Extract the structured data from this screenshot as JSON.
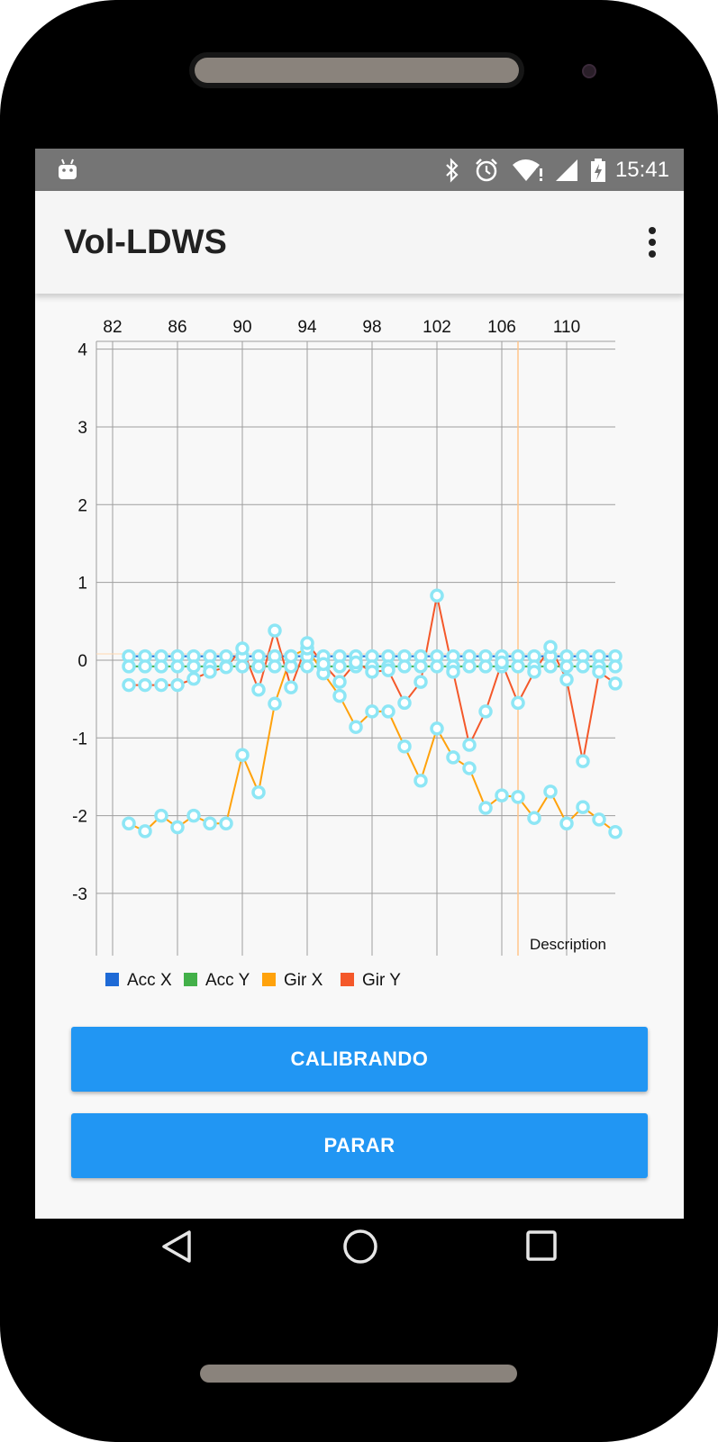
{
  "status_bar": {
    "time": "15:41"
  },
  "app_bar": {
    "title": "Vol-LDWS"
  },
  "chart_data": {
    "type": "line",
    "x_axis_ticks": [
      "82",
      "86",
      "90",
      "94",
      "98",
      "102",
      "106",
      "110"
    ],
    "y_axis_ticks": [
      "4",
      "3",
      "2",
      "1",
      "0",
      "-1",
      "-2",
      "-3"
    ],
    "xlim": [
      81,
      113
    ],
    "ylim": [
      -3.8,
      4.1
    ],
    "description": "Description",
    "legend_position": "bottom-left",
    "grid": true,
    "limit_line_x": 107,
    "x": [
      83,
      84,
      85,
      86,
      87,
      88,
      89,
      90,
      91,
      92,
      93,
      94,
      95,
      96,
      97,
      98,
      99,
      100,
      101,
      102,
      103,
      104,
      105,
      106,
      107,
      108,
      109,
      110,
      111,
      112,
      113
    ],
    "series": [
      {
        "name": "Acc X",
        "color": "#1e6ad6",
        "values": [
          0.05,
          0.05,
          0.05,
          0.05,
          0.05,
          0.05,
          0.05,
          0.05,
          0.05,
          0.05,
          0.05,
          0.05,
          0.05,
          0.05,
          0.05,
          0.05,
          0.05,
          0.05,
          0.05,
          0.05,
          0.05,
          0.05,
          0.05,
          0.05,
          0.05,
          0.05,
          0.05,
          0.05,
          0.05,
          0.05,
          0.05
        ]
      },
      {
        "name": "Acc Y",
        "color": "#43b049",
        "values": [
          -0.08,
          -0.08,
          -0.08,
          -0.08,
          -0.08,
          -0.08,
          -0.08,
          -0.08,
          -0.08,
          -0.08,
          -0.08,
          -0.08,
          -0.08,
          -0.08,
          -0.08,
          -0.08,
          -0.08,
          -0.08,
          -0.08,
          -0.08,
          -0.08,
          -0.08,
          -0.08,
          -0.08,
          -0.08,
          -0.08,
          -0.08,
          -0.08,
          -0.08,
          -0.08,
          -0.08
        ]
      },
      {
        "name": "Gir X",
        "color": "#ffa20c",
        "values": [
          -2.1,
          -2.2,
          -2.0,
          -2.15,
          -2.0,
          -2.1,
          -2.1,
          -1.22,
          -1.7,
          -0.56,
          0.05,
          0.15,
          -0.17,
          -0.46,
          -0.86,
          -0.66,
          -0.66,
          -1.11,
          -1.55,
          -0.88,
          -1.25,
          -1.39,
          -1.9,
          -1.74,
          -1.76,
          -2.03,
          -1.69,
          -2.1,
          -1.89,
          -2.05,
          -2.21
        ]
      },
      {
        "name": "Gir Y",
        "color": "#f4582a",
        "values": [
          -0.32,
          -0.32,
          -0.32,
          -0.32,
          -0.24,
          -0.15,
          -0.09,
          0.15,
          -0.38,
          0.38,
          -0.35,
          0.22,
          -0.05,
          -0.28,
          -0.03,
          -0.15,
          -0.13,
          -0.55,
          -0.28,
          0.83,
          -0.15,
          -1.09,
          -0.66,
          -0.03,
          -0.55,
          -0.15,
          0.17,
          -0.25,
          -1.3,
          -0.15,
          -0.3
        ]
      }
    ]
  },
  "buttons": {
    "calibrate": "CALIBRANDO",
    "stop": "PARAR"
  }
}
